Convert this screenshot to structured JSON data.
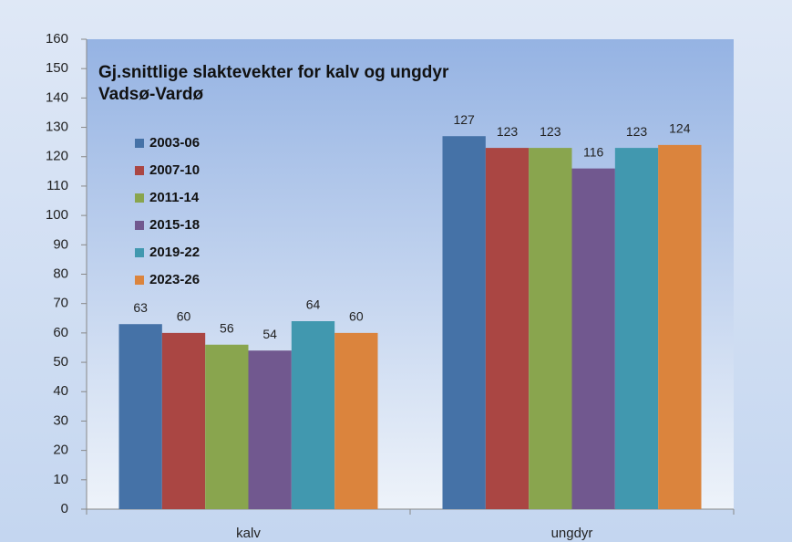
{
  "chart_data": {
    "type": "bar",
    "title": "Gj.snittlige slaktevekter for kalv og ungdyr",
    "subtitle": "Vadsø-Vardø",
    "categories": [
      "kalv",
      "ungdyr"
    ],
    "series": [
      {
        "name": "2003-06",
        "color": "#4572a7",
        "values": [
          63,
          127
        ]
      },
      {
        "name": "2007-10",
        "color": "#aa4643",
        "values": [
          60,
          123
        ]
      },
      {
        "name": "2011-14",
        "color": "#89a54e",
        "values": [
          56,
          123
        ]
      },
      {
        "name": "2015-18",
        "color": "#71588f",
        "values": [
          54,
          116
        ]
      },
      {
        "name": "2019-22",
        "color": "#4198af",
        "values": [
          64,
          123
        ]
      },
      {
        "name": "2023-26",
        "color": "#db843d",
        "values": [
          60,
          124
        ]
      }
    ],
    "ylim": [
      0,
      160
    ],
    "yticks": [
      0,
      10,
      20,
      30,
      40,
      50,
      60,
      70,
      80,
      90,
      100,
      110,
      120,
      130,
      140,
      150,
      160
    ],
    "legend": "upper left"
  }
}
